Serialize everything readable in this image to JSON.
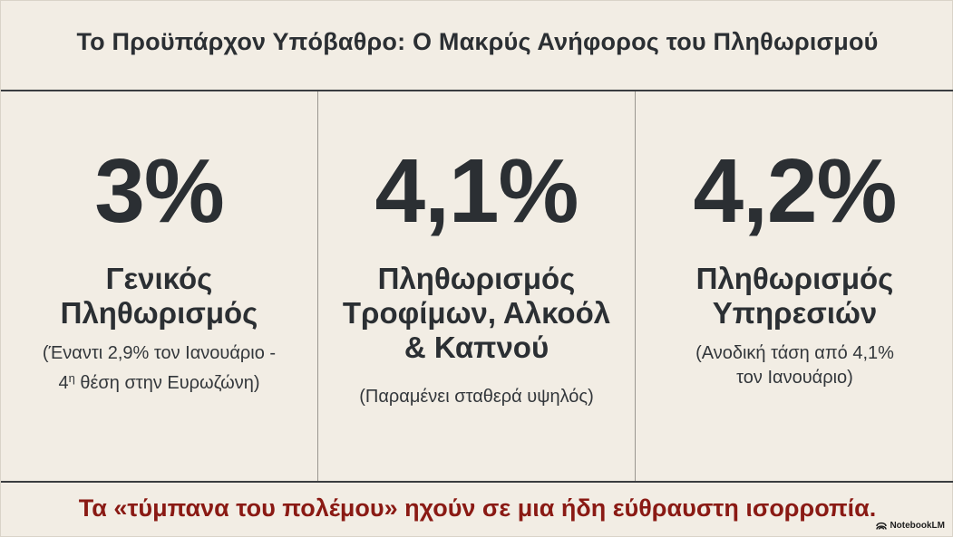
{
  "header": {
    "title": "Το Προϋπάρχον Υπόβαθρο: Ο Μακρύς Ανήφορος του Πληθωρισμού"
  },
  "panels": [
    {
      "stat": "3%",
      "title_lines": [
        "Γενικός",
        "Πληθωρισμός"
      ],
      "note_line1": "(Έναντι 2,9% τον Ιανουάριο -",
      "note_line2_prefix": "4",
      "note_line2_sup": "η",
      "note_line2_rest": " θέση στην Ευρωζώνη)"
    },
    {
      "stat": "4,1%",
      "title_lines": [
        "Πληθωρισμός",
        "Τροφίμων, Αλκοόλ",
        "& Καπνού"
      ],
      "note_lines": [
        "(Παραμένει σταθερά υψηλός)"
      ]
    },
    {
      "stat": "4,2%",
      "title_lines": [
        "Πληθωρισμός",
        "Υπηρεσιών"
      ],
      "note_lines": [
        "(Ανοδική τάση από 4,1%",
        "τον Ιανουάριο)"
      ]
    }
  ],
  "footer": {
    "text": "Τα «τύμπανα του πολέμου» ηχούν σε μια ήδη εύθραυστη ισορροπία."
  },
  "brand": {
    "label": "NotebookLM",
    "icon": "notebooklm-logo-icon"
  },
  "colors": {
    "background": "#f2ede4",
    "text": "#2b2f33",
    "accent": "#8a1a14",
    "divider": "#3a3d40"
  }
}
